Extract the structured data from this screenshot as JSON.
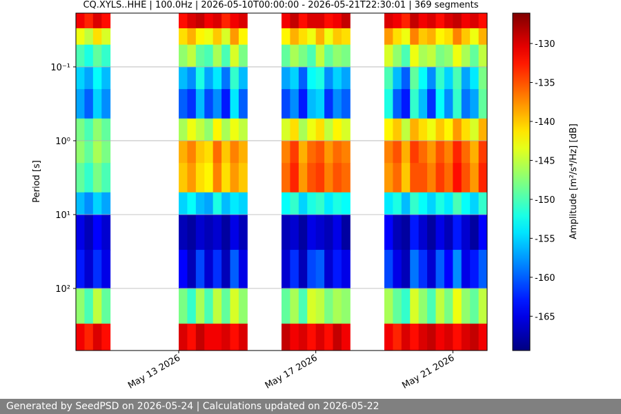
{
  "chart_data": {
    "type": "heatmap",
    "title": "CQ.XYLS..HHE | 100.0Hz | 2026-05-10T00:00:00 - 2026-05-21T22:30:01 | 369 segments",
    "ylabel": "Period [s]",
    "colorbar_label": "Amplitude [m²/s⁴/Hz] [dB]",
    "colormap": "jet",
    "yscale": "log",
    "y_inverted": true,
    "grid": true,
    "xlim": [
      "2026-05-10T00:00:00",
      "2026-05-22T00:00:00"
    ],
    "ylim": [
      0.0187,
      693
    ],
    "clim": [
      -169.4,
      -126.1
    ],
    "xticks": [
      {
        "value": "2026-05-13T00:00:00",
        "label": "May 13 2026"
      },
      {
        "value": "2026-05-17T00:00:00",
        "label": "May 17 2026"
      },
      {
        "value": "2026-05-21T00:00:00",
        "label": "May 21 2026"
      }
    ],
    "yticks": [
      {
        "value": 0.1,
        "label": "10⁻¹"
      },
      {
        "value": 1,
        "label": "10⁰"
      },
      {
        "value": 10,
        "label": "10¹"
      },
      {
        "value": 100,
        "label": "10²"
      }
    ],
    "cticks": [
      -130,
      -135,
      -140,
      -145,
      -150,
      -155,
      -160,
      -165
    ],
    "x_bins": [
      "2026-05-10T00:00:00",
      "2026-05-10T06:00:00",
      "2026-05-10T12:00:00",
      "2026-05-10T18:00:00",
      "2026-05-11T00:00:00",
      "2026-05-11T06:00:00",
      "2026-05-11T12:00:00",
      "2026-05-11T18:00:00",
      "2026-05-12T00:00:00",
      "2026-05-12T06:00:00",
      "2026-05-12T12:00:00",
      "2026-05-12T18:00:00",
      "2026-05-13T00:00:00",
      "2026-05-13T06:00:00",
      "2026-05-13T12:00:00",
      "2026-05-13T18:00:00",
      "2026-05-14T00:00:00",
      "2026-05-14T06:00:00",
      "2026-05-14T12:00:00",
      "2026-05-14T18:00:00",
      "2026-05-15T00:00:00",
      "2026-05-15T06:00:00",
      "2026-05-15T12:00:00",
      "2026-05-15T18:00:00",
      "2026-05-16T00:00:00",
      "2026-05-16T06:00:00",
      "2026-05-16T12:00:00",
      "2026-05-16T18:00:00",
      "2026-05-17T00:00:00",
      "2026-05-17T06:00:00",
      "2026-05-17T12:00:00",
      "2026-05-17T18:00:00",
      "2026-05-18T00:00:00",
      "2026-05-18T06:00:00",
      "2026-05-18T12:00:00",
      "2026-05-18T18:00:00",
      "2026-05-19T00:00:00",
      "2026-05-19T06:00:00",
      "2026-05-19T12:00:00",
      "2026-05-19T18:00:00",
      "2026-05-20T00:00:00",
      "2026-05-20T06:00:00",
      "2026-05-20T12:00:00",
      "2026-05-20T18:00:00",
      "2026-05-21T00:00:00",
      "2026-05-21T06:00:00",
      "2026-05-21T12:00:00",
      "2026-05-21T18:00:00",
      "2026-05-22T00:00:00"
    ],
    "y_bins": [
      0.0187,
      0.03,
      0.05,
      0.1,
      0.2,
      0.5,
      1,
      2,
      5,
      10,
      30,
      100,
      300,
      693
    ],
    "z": [
      [
        -131,
        -133,
        -130,
        -132,
        null,
        null,
        null,
        null,
        null,
        null,
        null,
        null,
        -132,
        -130,
        -129,
        -131,
        -130,
        -133,
        -131,
        -130,
        null,
        null,
        null,
        null,
        -131,
        -129,
        -132,
        -130,
        -130,
        -132,
        -131,
        -129,
        null,
        null,
        null,
        null,
        -130,
        -131,
        -133,
        -129,
        -131,
        -130,
        -132,
        -130,
        -129,
        -131,
        -130,
        -132
      ],
      [
        -143,
        -145,
        -141,
        -144,
        null,
        null,
        null,
        null,
        null,
        null,
        null,
        null,
        -141,
        -139,
        -142,
        -143,
        -140,
        -144,
        -138,
        -142,
        null,
        null,
        null,
        null,
        -142,
        -139,
        -141,
        -143,
        -139,
        -143,
        -140,
        -141,
        null,
        null,
        null,
        null,
        -138,
        -141,
        -143,
        -137,
        -140,
        -139,
        -142,
        -141,
        -137,
        -140,
        -143,
        -139
      ],
      [
        -150,
        -152,
        -149,
        -151,
        null,
        null,
        null,
        null,
        null,
        null,
        null,
        null,
        -147,
        -145,
        -149,
        -150,
        -146,
        -150,
        -144,
        -148,
        null,
        null,
        null,
        null,
        -149,
        -146,
        -148,
        -150,
        -145,
        -149,
        -147,
        -148,
        null,
        null,
        null,
        null,
        -144,
        -147,
        -150,
        -143,
        -146,
        -145,
        -148,
        -147,
        -143,
        -146,
        -149,
        -145
      ],
      [
        -155,
        -157,
        -153,
        -156,
        null,
        null,
        null,
        null,
        null,
        null,
        null,
        null,
        -156,
        -158,
        -152,
        -157,
        -154,
        -159,
        -151,
        -156,
        null,
        null,
        null,
        null,
        -157,
        -155,
        -160,
        -153,
        -152,
        -158,
        -155,
        -157,
        null,
        null,
        null,
        null,
        -150,
        -156,
        -160,
        -149,
        -153,
        -158,
        -151,
        -155,
        -150,
        -157,
        -154,
        -148
      ],
      [
        -157,
        -160,
        -155,
        -158,
        null,
        null,
        null,
        null,
        null,
        null,
        null,
        null,
        -160,
        -162,
        -156,
        -161,
        -158,
        -163,
        -154,
        -160,
        null,
        null,
        null,
        null,
        -161,
        -158,
        -163,
        -156,
        -155,
        -162,
        -158,
        -160,
        null,
        null,
        null,
        null,
        -152,
        -160,
        -163,
        -151,
        -156,
        -162,
        -153,
        -158,
        -151,
        -159,
        -157,
        -149
      ],
      [
        -148,
        -150,
        -147,
        -149,
        null,
        null,
        null,
        null,
        null,
        null,
        null,
        null,
        -146,
        -143,
        -145,
        -147,
        -142,
        -146,
        -143,
        -145,
        null,
        null,
        null,
        null,
        -144,
        -141,
        -146,
        -143,
        -141,
        -145,
        -142,
        -144,
        null,
        null,
        null,
        null,
        -142,
        -140,
        -145,
        -139,
        -141,
        -143,
        -140,
        -142,
        -138,
        -141,
        -144,
        -139
      ],
      [
        -147,
        -149,
        -146,
        -148,
        null,
        null,
        null,
        null,
        null,
        null,
        null,
        null,
        -139,
        -137,
        -140,
        -141,
        -136,
        -140,
        -137,
        -139,
        null,
        null,
        null,
        null,
        -137,
        -134,
        -139,
        -136,
        -135,
        -138,
        -136,
        -137,
        null,
        null,
        null,
        null,
        -137,
        -135,
        -139,
        -134,
        -136,
        -138,
        -135,
        -137,
        -133,
        -136,
        -139,
        -134
      ],
      [
        -149,
        -151,
        -148,
        -150,
        null,
        null,
        null,
        null,
        null,
        null,
        null,
        null,
        -140,
        -138,
        -141,
        -142,
        -137,
        -141,
        -138,
        -140,
        null,
        null,
        null,
        null,
        -136,
        -133,
        -138,
        -135,
        -134,
        -137,
        -135,
        -136,
        null,
        null,
        null,
        null,
        -138,
        -136,
        -140,
        -135,
        -135,
        -137,
        -134,
        -136,
        -132,
        -135,
        -138,
        -133
      ],
      [
        -156,
        -158,
        -155,
        -157,
        null,
        null,
        null,
        null,
        null,
        null,
        null,
        null,
        -155,
        -153,
        -156,
        -157,
        -152,
        -156,
        -154,
        -155,
        null,
        null,
        null,
        null,
        -153,
        -151,
        -155,
        -152,
        -151,
        -154,
        -152,
        -153,
        null,
        null,
        null,
        null,
        -154,
        -152,
        -156,
        -151,
        -153,
        -155,
        -152,
        -154,
        -150,
        -153,
        -155,
        -151
      ],
      [
        -165,
        -167,
        -164,
        -166,
        null,
        null,
        null,
        null,
        null,
        null,
        null,
        null,
        -167,
        -168,
        -166,
        -167,
        -166,
        -168,
        -165,
        -167,
        null,
        null,
        null,
        null,
        -167,
        -166,
        -168,
        -165,
        -166,
        -167,
        -165,
        -168,
        null,
        null,
        null,
        null,
        -164,
        -167,
        -168,
        -163,
        -166,
        -168,
        -165,
        -167,
        -163,
        -166,
        -168,
        -164
      ],
      [
        -163,
        -166,
        -162,
        -165,
        null,
        null,
        null,
        null,
        null,
        null,
        null,
        null,
        -164,
        -167,
        -161,
        -166,
        -162,
        -167,
        -160,
        -165,
        null,
        null,
        null,
        null,
        -166,
        -162,
        -167,
        -161,
        -160,
        -166,
        -163,
        -165,
        null,
        null,
        null,
        null,
        -161,
        -165,
        -167,
        -159,
        -162,
        -166,
        -160,
        -164,
        -158,
        -165,
        -163,
        -160
      ],
      [
        -147,
        -150,
        -145,
        -149,
        null,
        null,
        null,
        null,
        null,
        null,
        null,
        null,
        -148,
        -151,
        -146,
        -150,
        -145,
        -149,
        -144,
        -147,
        null,
        null,
        null,
        null,
        -149,
        -146,
        -150,
        -144,
        -145,
        -148,
        -146,
        -147,
        null,
        null,
        null,
        null,
        -146,
        -149,
        -151,
        -144,
        -147,
        -150,
        -145,
        -148,
        -143,
        -147,
        -149,
        -145
      ],
      [
        -131,
        -133,
        -130,
        -132,
        null,
        null,
        null,
        null,
        null,
        null,
        null,
        null,
        -130,
        -132,
        -129,
        -131,
        -131,
        -130,
        -132,
        -130,
        null,
        null,
        null,
        null,
        -129,
        -131,
        -130,
        -132,
        -130,
        -132,
        -129,
        -131,
        null,
        null,
        null,
        null,
        -131,
        -133,
        -130,
        -132,
        -130,
        -129,
        -131,
        -130,
        -132,
        -130,
        -129,
        -131
      ]
    ]
  },
  "footer": "Generated by SeedPSD on 2026-05-24 | Calculations updated on 2026-05-22"
}
